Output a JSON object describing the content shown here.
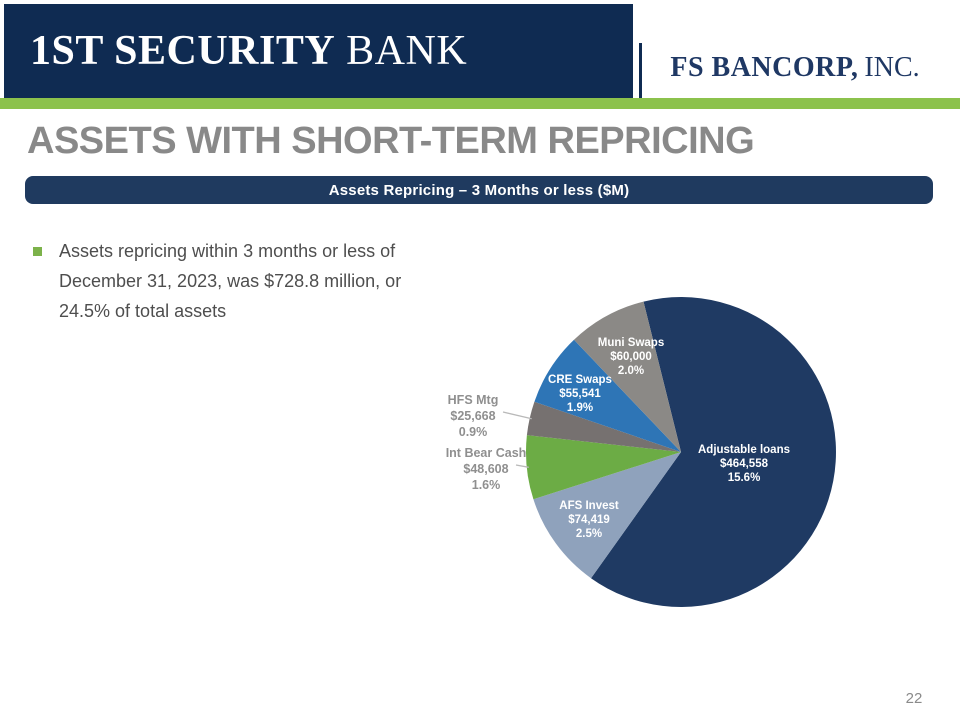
{
  "colors": {
    "header_navy": "#0F2B52",
    "banner_navy": "#1F3A5F",
    "accent_green": "#8CC24C",
    "bullet_green": "#7CB24A",
    "logo_text_navy": "#1F3864"
  },
  "header": {
    "bank_logo": {
      "primary": "1ST SECURITY",
      "secondary": "BANK"
    },
    "corp_logo": {
      "primary": "FS BANCORP,",
      "secondary": "INC."
    }
  },
  "title": "ASSETS WITH SHORT-TERM REPRICING",
  "banner": {
    "text": "Assets Repricing – 3 Months or less ($M)"
  },
  "bullet": {
    "lines": [
      "Assets repricing within 3 months or less of",
      "December 31, 2023, was $728.8 million, or",
      "24.5% of total assets"
    ]
  },
  "chart_data": {
    "type": "pie",
    "title": "Assets Repricing – 3 Months or less ($M)",
    "start_angle_deg": -14,
    "clockwise": true,
    "legend": "none (labels on slices)",
    "segments": [
      {
        "label": "Adjustable loans",
        "value": 464558,
        "value_label": "$464,558",
        "pct_label": "15.6%",
        "color": "#1F3A63",
        "label_inside": true
      },
      {
        "label": "AFS Invest",
        "value": 74419,
        "value_label": "$74,419",
        "pct_label": "2.5%",
        "color": "#8FA2BC",
        "label_inside": true
      },
      {
        "label": "Int Bear Cash",
        "value": 48608,
        "value_label": "$48,608",
        "pct_label": "1.6%",
        "color": "#6CAC45",
        "label_inside": false
      },
      {
        "label": "HFS Mtg",
        "value": 25668,
        "value_label": "$25,668",
        "pct_label": "0.9%",
        "color": "#767170",
        "label_inside": false
      },
      {
        "label": "CRE Swaps",
        "value": 55541,
        "value_label": "$55,541",
        "pct_label": "1.9%",
        "color": "#2E75B6",
        "label_inside": true
      },
      {
        "label": "Muni Swaps",
        "value": 60000,
        "value_label": "$60,000",
        "pct_label": "2.0%",
        "color": "#8B8986",
        "label_inside": true
      }
    ]
  },
  "page_number": "22"
}
